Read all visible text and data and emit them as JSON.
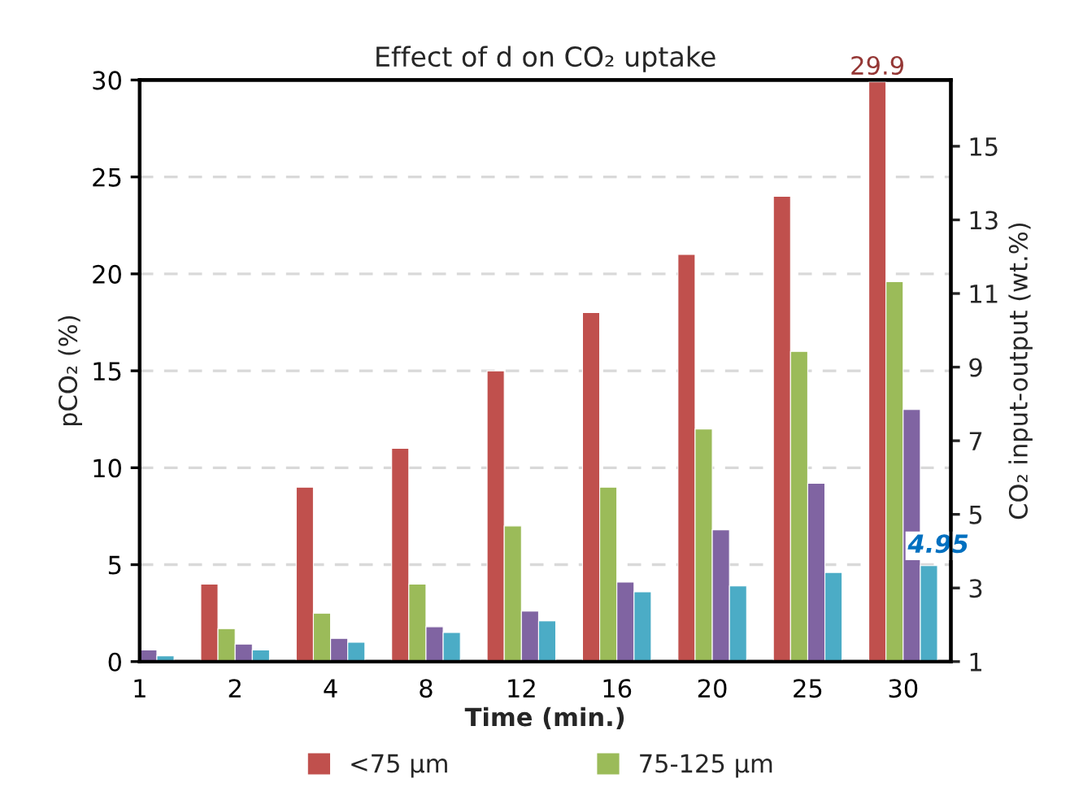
{
  "chart_data": {
    "type": "bar",
    "title": "Effect of d on CO₂ uptake",
    "xlabel": "Time (min.)",
    "ylabel": "pCO₂ (%)",
    "y2label": "CO₂ input-output (wt.%)",
    "categories": [
      "1",
      "2",
      "4",
      "8",
      "12",
      "16",
      "20",
      "25",
      "30"
    ],
    "series": [
      {
        "name": "<75 µm",
        "color": "#c0504d",
        "values": [
          null,
          4.0,
          9.0,
          11.0,
          15.0,
          18.0,
          21.0,
          24.0,
          29.9
        ],
        "value_labels": [
          null,
          null,
          null,
          null,
          null,
          null,
          null,
          null,
          "29.9"
        ]
      },
      {
        "name": "75-125 µm",
        "color": "#9bbb59",
        "values": [
          null,
          1.7,
          2.5,
          4.0,
          7.0,
          9.0,
          12.0,
          16.0,
          19.6
        ]
      },
      {
        "color": "#8064a2",
        "values": [
          0.6,
          0.9,
          1.2,
          1.8,
          2.6,
          4.1,
          6.8,
          9.2,
          13.0
        ]
      },
      {
        "color": "#4bacc6",
        "values": [
          0.3,
          0.6,
          1.0,
          1.5,
          2.1,
          3.6,
          3.9,
          4.6,
          4.95
        ],
        "value_labels": [
          null,
          null,
          null,
          null,
          null,
          null,
          null,
          null,
          "4.95"
        ]
      }
    ],
    "ylim": [
      0,
      30
    ],
    "yticks": [
      0,
      5,
      10,
      15,
      20,
      25,
      30
    ],
    "y2lim": [
      1,
      16.8
    ],
    "y2ticks": [
      1,
      3,
      5,
      7,
      9,
      11,
      13,
      15
    ],
    "grid": "y",
    "legend": "bottom"
  }
}
